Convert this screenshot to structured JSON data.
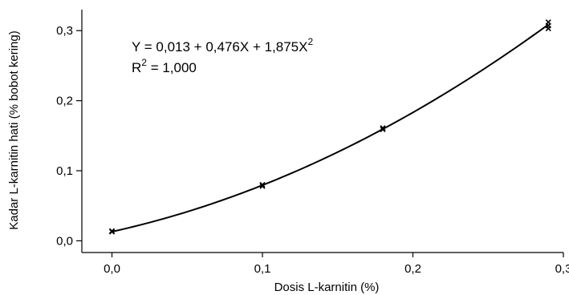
{
  "chart_data": {
    "type": "line",
    "title": "",
    "xlabel": "Dosis L-karnitin (%)",
    "ylabel": "Kadar  L-karnitin hati (% bobot kering)",
    "xlim": [
      -0.02,
      0.3
    ],
    "ylim": [
      -0.003,
      0.33
    ],
    "xticks": [
      0.0,
      0.1,
      0.2,
      0.3
    ],
    "xtick_labels": [
      "0,0",
      "0,1",
      "0,2",
      "0,3"
    ],
    "yticks": [
      0.0,
      0.1,
      0.2,
      0.3
    ],
    "ytick_labels": [
      "0,0",
      "0,1",
      "0,2",
      "0,3"
    ],
    "grid": false,
    "series": [
      {
        "x": [
          0.0,
          0.0,
          0.1,
          0.1,
          0.18,
          0.18,
          0.29,
          0.29,
          0.29
        ],
        "y": [
          0.013,
          0.014,
          0.078,
          0.08,
          0.159,
          0.161,
          0.303,
          0.307,
          0.312
        ]
      }
    ],
    "fit": {
      "intercept": 0.013,
      "b1": 0.476,
      "b2": 1.875,
      "x_range": [
        0.0,
        0.29
      ]
    },
    "annotations": {
      "eq_y": "Y",
      "eq_rest": " = 0,013 + 0,476X + 1,875X",
      "eq_exp": "2",
      "r2_r": "R",
      "r2_exp": "2",
      "r2_rest": " = 1,000"
    }
  }
}
